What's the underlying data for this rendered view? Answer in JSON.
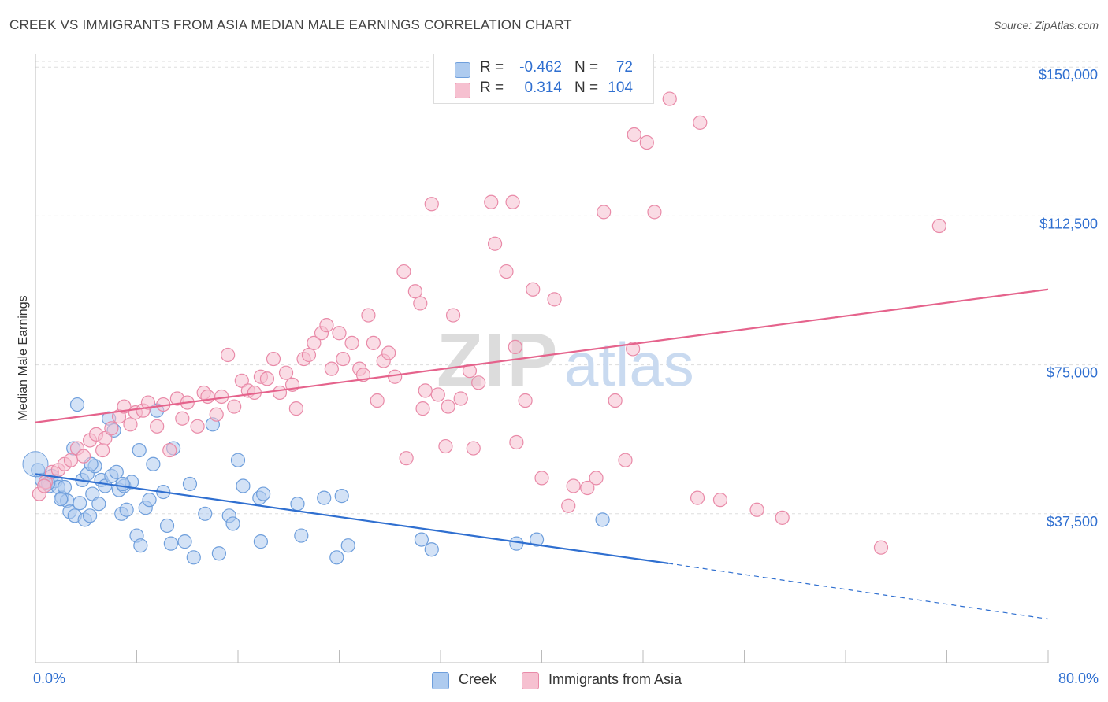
{
  "header": {
    "title": "CREEK VS IMMIGRANTS FROM ASIA MEDIAN MALE EARNINGS CORRELATION CHART",
    "source": "Source: ZipAtlas.com"
  },
  "legend": {
    "rows": [
      {
        "r_label": "R =",
        "r_value": "-0.462",
        "n_label": "N =",
        "n_value": "72"
      },
      {
        "r_label": "R =",
        "r_value": "0.314",
        "n_label": "N =",
        "n_value": "104"
      }
    ],
    "bottom": [
      "Creek",
      "Immigrants from Asia"
    ]
  },
  "axes": {
    "y_label": "Median Male Earnings",
    "x_min_label": "0.0%",
    "x_max_label": "80.0%"
  },
  "watermark": {
    "zip": "ZIP",
    "atlas": "atlas"
  },
  "colors": {
    "creek_fill": "#aecbef",
    "creek_stroke": "#6f9fdc",
    "creek_line": "#2f6fd0",
    "asia_fill": "#f6c0d0",
    "asia_stroke": "#e98aa8",
    "asia_line": "#e5638c",
    "tick_label": "#2f6fd0"
  },
  "chart_data": {
    "type": "scatter",
    "title": "CREEK VS IMMIGRANTS FROM ASIA MEDIAN MALE EARNINGS CORRELATION CHART",
    "xlabel": "",
    "ylabel": "Median Male Earnings",
    "xlim": [
      0,
      80
    ],
    "ylim": [
      0,
      155000
    ],
    "x_tick_labels": [
      "0.0%",
      "80.0%"
    ],
    "y_ticks": [
      37500,
      75000,
      112500,
      150000
    ],
    "y_tick_labels": [
      "$37,500",
      "$75,000",
      "$112,500",
      "$150,000"
    ],
    "grid": true,
    "legend_position": "top-center",
    "series": [
      {
        "name": "Creek",
        "r": -0.462,
        "n": 72,
        "trend": {
          "x0": 0,
          "y0": 47500,
          "x1": 50,
          "y1": 25000,
          "dashed_to_x": 80,
          "dashed_to_y": 11000
        },
        "points": [
          [
            0.2,
            48500
          ],
          [
            0.5,
            46000
          ],
          [
            0.8,
            45500
          ],
          [
            1.1,
            44500
          ],
          [
            1.3,
            47000
          ],
          [
            1.6,
            45800
          ],
          [
            1.8,
            44200
          ],
          [
            2.1,
            41500
          ],
          [
            2.3,
            44200
          ],
          [
            2.5,
            40800
          ],
          [
            2.7,
            38000
          ],
          [
            3.0,
            54000
          ],
          [
            3.1,
            37000
          ],
          [
            3.3,
            65000
          ],
          [
            3.5,
            40200
          ],
          [
            3.7,
            46000
          ],
          [
            3.9,
            36000
          ],
          [
            4.1,
            47500
          ],
          [
            4.3,
            37000
          ],
          [
            4.5,
            42500
          ],
          [
            4.7,
            49500
          ],
          [
            5.0,
            40000
          ],
          [
            5.2,
            46000
          ],
          [
            5.5,
            44500
          ],
          [
            5.8,
            61500
          ],
          [
            6.0,
            47000
          ],
          [
            6.2,
            58500
          ],
          [
            6.4,
            48000
          ],
          [
            6.6,
            43500
          ],
          [
            6.8,
            37500
          ],
          [
            7.0,
            44500
          ],
          [
            7.2,
            38500
          ],
          [
            7.6,
            45500
          ],
          [
            8.0,
            32000
          ],
          [
            8.2,
            53500
          ],
          [
            8.3,
            29500
          ],
          [
            8.7,
            39000
          ],
          [
            9.0,
            41000
          ],
          [
            9.3,
            50000
          ],
          [
            9.6,
            63500
          ],
          [
            10.1,
            43000
          ],
          [
            10.4,
            34500
          ],
          [
            10.7,
            30000
          ],
          [
            10.9,
            54000
          ],
          [
            11.8,
            30500
          ],
          [
            12.2,
            45000
          ],
          [
            12.5,
            26500
          ],
          [
            13.4,
            37500
          ],
          [
            14.0,
            60000
          ],
          [
            14.5,
            27500
          ],
          [
            15.3,
            37000
          ],
          [
            15.6,
            35000
          ],
          [
            16.0,
            51000
          ],
          [
            16.4,
            44500
          ],
          [
            17.8,
            30500
          ],
          [
            17.7,
            41500
          ],
          [
            18.0,
            42500
          ],
          [
            20.7,
            40000
          ],
          [
            21.0,
            32000
          ],
          [
            22.8,
            41500
          ],
          [
            23.8,
            26500
          ],
          [
            24.2,
            42000
          ],
          [
            24.7,
            29500
          ],
          [
            30.5,
            31000
          ],
          [
            31.3,
            28500
          ],
          [
            38.0,
            30000
          ],
          [
            39.6,
            31000
          ],
          [
            44.8,
            36000
          ],
          [
            4.4,
            50000
          ],
          [
            6.9,
            45000
          ],
          [
            1.0,
            45200
          ],
          [
            2.0,
            41200
          ]
        ]
      },
      {
        "name": "Immigrants from Asia",
        "r": 0.314,
        "n": 104,
        "trend": {
          "x0": 0,
          "y0": 60500,
          "x1": 80,
          "y1": 94000
        },
        "points": [
          [
            0.3,
            42500
          ],
          [
            0.8,
            45500
          ],
          [
            1.3,
            48000
          ],
          [
            1.8,
            48500
          ],
          [
            2.3,
            50000
          ],
          [
            2.8,
            51000
          ],
          [
            3.3,
            54000
          ],
          [
            3.8,
            52000
          ],
          [
            4.3,
            56000
          ],
          [
            4.8,
            57500
          ],
          [
            5.3,
            53500
          ],
          [
            5.5,
            56500
          ],
          [
            6.0,
            59000
          ],
          [
            6.6,
            62000
          ],
          [
            7.0,
            64500
          ],
          [
            7.5,
            60000
          ],
          [
            7.9,
            63000
          ],
          [
            8.5,
            63500
          ],
          [
            8.9,
            65500
          ],
          [
            9.6,
            59500
          ],
          [
            10.1,
            65000
          ],
          [
            10.6,
            53500
          ],
          [
            11.2,
            66500
          ],
          [
            11.6,
            61500
          ],
          [
            12.0,
            65500
          ],
          [
            12.8,
            59500
          ],
          [
            13.3,
            68000
          ],
          [
            13.6,
            67000
          ],
          [
            14.3,
            62500
          ],
          [
            14.7,
            67000
          ],
          [
            15.2,
            77500
          ],
          [
            15.7,
            64500
          ],
          [
            16.3,
            71000
          ],
          [
            16.8,
            68500
          ],
          [
            17.3,
            68000
          ],
          [
            17.8,
            72000
          ],
          [
            18.3,
            71500
          ],
          [
            18.8,
            76500
          ],
          [
            19.3,
            68000
          ],
          [
            19.8,
            73000
          ],
          [
            20.3,
            70000
          ],
          [
            20.6,
            64000
          ],
          [
            21.2,
            76500
          ],
          [
            21.6,
            77500
          ],
          [
            22.0,
            80500
          ],
          [
            22.6,
            83000
          ],
          [
            23.0,
            85000
          ],
          [
            23.4,
            74000
          ],
          [
            24.0,
            83000
          ],
          [
            24.3,
            76500
          ],
          [
            25.0,
            80500
          ],
          [
            25.6,
            74000
          ],
          [
            25.9,
            72500
          ],
          [
            26.3,
            87500
          ],
          [
            26.7,
            80500
          ],
          [
            27.0,
            66000
          ],
          [
            27.5,
            76000
          ],
          [
            27.9,
            78000
          ],
          [
            28.4,
            72000
          ],
          [
            29.1,
            98500
          ],
          [
            29.3,
            51500
          ],
          [
            30.0,
            93500
          ],
          [
            30.4,
            90500
          ],
          [
            30.8,
            68500
          ],
          [
            31.3,
            115500
          ],
          [
            31.8,
            67500
          ],
          [
            32.4,
            54500
          ],
          [
            32.6,
            64500
          ],
          [
            33.0,
            87500
          ],
          [
            33.6,
            66500
          ],
          [
            34.3,
            73500
          ],
          [
            34.6,
            54000
          ],
          [
            35.0,
            70500
          ],
          [
            36.0,
            116000
          ],
          [
            36.3,
            105500
          ],
          [
            37.2,
            98500
          ],
          [
            37.7,
            116000
          ],
          [
            38.0,
            55500
          ],
          [
            38.7,
            66000
          ],
          [
            39.3,
            94000
          ],
          [
            40.0,
            46500
          ],
          [
            41.0,
            91500
          ],
          [
            42.1,
            39500
          ],
          [
            42.5,
            44500
          ],
          [
            43.6,
            44000
          ],
          [
            44.3,
            46500
          ],
          [
            44.9,
            113500
          ],
          [
            45.8,
            66000
          ],
          [
            46.6,
            51000
          ],
          [
            47.3,
            133000
          ],
          [
            48.3,
            131000
          ],
          [
            48.9,
            113500
          ],
          [
            50.1,
            142000
          ],
          [
            52.3,
            41500
          ],
          [
            52.5,
            136000
          ],
          [
            54.1,
            41000
          ],
          [
            57.0,
            38500
          ],
          [
            59.0,
            36500
          ],
          [
            66.8,
            29000
          ],
          [
            71.4,
            110000
          ],
          [
            47.2,
            79000
          ],
          [
            0.7,
            44500
          ],
          [
            37.9,
            79500
          ],
          [
            30.6,
            64000
          ]
        ]
      }
    ]
  }
}
